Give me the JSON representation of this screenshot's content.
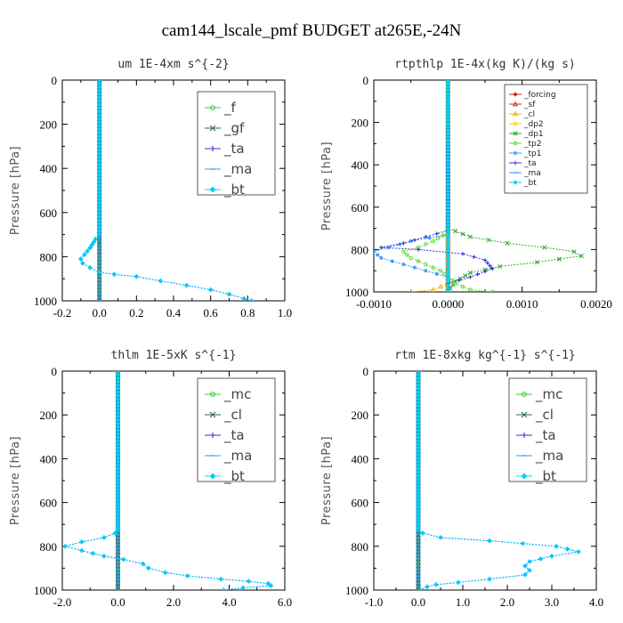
{
  "figure": {
    "title": "cam144_lscale_pmf  BUDGET at265E,-24N"
  },
  "chart_data": [
    {
      "type": "line",
      "title": "um  1E-4xm s^{-2}",
      "ylabel": "Pressure [hPa]",
      "xlim": [
        -0.2,
        1.0
      ],
      "ylim": [
        1000,
        0
      ],
      "xticks": [
        -0.2,
        0.0,
        0.2,
        0.4,
        0.6,
        0.8,
        1.0
      ],
      "xtick_labels": [
        "-0.2",
        "0.0",
        "0.2",
        "0.4",
        "0.6",
        "0.8",
        "1.0"
      ],
      "yticks": [
        0,
        200,
        400,
        600,
        800,
        1000
      ],
      "ytick_labels": [
        "0",
        "200",
        "400",
        "600",
        "800",
        "1000"
      ],
      "legend": {
        "position": "top-right",
        "style": "large"
      },
      "series": [
        {
          "name": "_f",
          "color": "#33cc33",
          "marker": "circle",
          "points": [
            [
              0.0,
              0
            ],
            [
              0.0,
              1000
            ]
          ]
        },
        {
          "name": "_gf",
          "color": "#336666",
          "marker": "x",
          "points": [
            [
              0.0,
              0
            ],
            [
              0.0,
              1000
            ]
          ]
        },
        {
          "name": "_ta",
          "color": "#3333cc",
          "marker": "plus",
          "points": [
            [
              0.0,
              0
            ],
            [
              0.0,
              700
            ],
            [
              -0.02,
              720
            ],
            [
              -0.05,
              760
            ],
            [
              -0.08,
              790
            ],
            [
              -0.1,
              810
            ],
            [
              -0.09,
              830
            ],
            [
              -0.05,
              850
            ],
            [
              0.0,
              870
            ],
            [
              0.08,
              880
            ],
            [
              0.2,
              890
            ],
            [
              0.33,
              910
            ],
            [
              0.47,
              930
            ],
            [
              0.6,
              950
            ],
            [
              0.7,
              970
            ],
            [
              0.78,
              990
            ],
            [
              0.82,
              1000
            ]
          ]
        },
        {
          "name": "_ma",
          "color": "#3399ff",
          "marker": "dash",
          "points": [
            [
              0.0,
              0
            ],
            [
              0.0,
              1000
            ]
          ]
        },
        {
          "name": "_bt",
          "color": "#00ccff",
          "marker": "diamond",
          "points": [
            [
              0.0,
              0
            ],
            [
              0.0,
              700
            ],
            [
              -0.02,
              720
            ],
            [
              -0.05,
              760
            ],
            [
              -0.08,
              790
            ],
            [
              -0.1,
              810
            ],
            [
              -0.09,
              830
            ],
            [
              -0.05,
              850
            ],
            [
              0.0,
              870
            ],
            [
              0.08,
              880
            ],
            [
              0.2,
              890
            ],
            [
              0.33,
              910
            ],
            [
              0.47,
              930
            ],
            [
              0.6,
              950
            ],
            [
              0.7,
              970
            ],
            [
              0.78,
              990
            ],
            [
              0.82,
              1000
            ]
          ]
        }
      ]
    },
    {
      "type": "line",
      "title": "rtpthlp  1E-4x(kg K)/(kg s)",
      "ylabel": "Pressure [hPa]",
      "xlim": [
        -0.001,
        0.002
      ],
      "ylim": [
        1000,
        0
      ],
      "xticks": [
        -0.001,
        0.0,
        0.001,
        0.002
      ],
      "xtick_labels": [
        "-0.0010",
        "0.0000",
        "0.0010",
        "0.0020"
      ],
      "yticks": [
        0,
        200,
        400,
        600,
        800,
        1000
      ],
      "ytick_labels": [
        "0",
        "200",
        "400",
        "600",
        "800",
        "1000"
      ],
      "legend": {
        "position": "top-right",
        "style": "small"
      },
      "series": [
        {
          "name": "_forcing",
          "color": "#cc2222",
          "marker": "diamond",
          "points": [
            [
              0.0,
              0
            ],
            [
              0.0,
              1000
            ]
          ]
        },
        {
          "name": "_sf",
          "color": "#cc3333",
          "marker": "tri",
          "points": [
            [
              0.0,
              0
            ],
            [
              0.0,
              1000
            ]
          ]
        },
        {
          "name": "_cl",
          "color": "#ffaa00",
          "marker": "tri",
          "points": [
            [
              0.0,
              0
            ],
            [
              0.0,
              960
            ],
            [
              -0.0002,
              990
            ],
            [
              -0.0005,
              1000
            ]
          ]
        },
        {
          "name": "_dp2",
          "color": "#ffcc00",
          "marker": "circle",
          "points": [
            [
              0.0,
              0
            ],
            [
              0.0,
              1000
            ]
          ]
        },
        {
          "name": "_dp1",
          "color": "#33aa33",
          "marker": "x",
          "points": [
            [
              0.0,
              0
            ],
            [
              0.0,
              700
            ],
            [
              0.0003,
              740
            ],
            [
              0.0008,
              770
            ],
            [
              0.0013,
              790
            ],
            [
              0.0017,
              810
            ],
            [
              0.0018,
              830
            ],
            [
              0.0012,
              860
            ],
            [
              0.0007,
              880
            ],
            [
              0.0003,
              910
            ],
            [
              0.0001,
              950
            ],
            [
              0.0,
              1000
            ]
          ]
        },
        {
          "name": "_tp2",
          "color": "#55dd33",
          "marker": "circle",
          "points": [
            [
              0.0,
              0
            ],
            [
              0.0,
              720
            ],
            [
              -0.0002,
              760
            ],
            [
              -0.0004,
              790
            ],
            [
              -0.0006,
              810
            ],
            [
              -0.0005,
              840
            ],
            [
              -0.0003,
              870
            ],
            [
              -0.0001,
              900
            ],
            [
              0.0,
              930
            ],
            [
              0.0001,
              960
            ],
            [
              0.0003,
              990
            ],
            [
              0.0006,
              1000
            ]
          ]
        },
        {
          "name": "_tp1",
          "color": "#3399ff",
          "marker": "star",
          "points": [
            [
              0.0,
              0
            ],
            [
              0.0,
              730
            ],
            [
              -0.0005,
              760
            ],
            [
              -0.0008,
              790
            ],
            [
              -0.001,
              810
            ],
            [
              -0.0009,
              840
            ],
            [
              -0.0006,
              870
            ],
            [
              -0.0003,
              900
            ],
            [
              0.0,
              930
            ]
          ]
        },
        {
          "name": "_ta",
          "color": "#3333cc",
          "marker": "plus",
          "points": [
            [
              0.0,
              0
            ],
            [
              0.0,
              710
            ],
            [
              -0.0003,
              740
            ],
            [
              -0.0006,
              770
            ],
            [
              -0.0009,
              790
            ],
            [
              -0.0004,
              800
            ],
            [
              0.0002,
              820
            ],
            [
              0.0005,
              850
            ],
            [
              0.0006,
              890
            ],
            [
              0.0003,
              930
            ],
            [
              0.0,
              960
            ]
          ]
        },
        {
          "name": "_ma",
          "color": "#3399ff",
          "marker": "dash",
          "points": [
            [
              0.0,
              0
            ],
            [
              0.0,
              1000
            ]
          ]
        },
        {
          "name": "_bt",
          "color": "#00ccff",
          "marker": "diamond",
          "points": [
            [
              0.0,
              0
            ],
            [
              0.0,
              1000
            ]
          ]
        }
      ]
    },
    {
      "type": "line",
      "title": "thlm  1E-5xK s^{-1}",
      "ylabel": "Pressure [hPa]",
      "xlim": [
        -2.0,
        6.0
      ],
      "ylim": [
        1000,
        0
      ],
      "xticks": [
        -2.0,
        0.0,
        2.0,
        4.0,
        6.0
      ],
      "xtick_labels": [
        "-2.0",
        "0.0",
        "2.0",
        "4.0",
        "6.0"
      ],
      "yticks": [
        0,
        200,
        400,
        600,
        800,
        1000
      ],
      "ytick_labels": [
        "0",
        "200",
        "400",
        "600",
        "800",
        "1000"
      ],
      "legend": {
        "position": "top-right",
        "style": "large"
      },
      "series": [
        {
          "name": "_mc",
          "color": "#33cc33",
          "marker": "circle",
          "points": [
            [
              0.0,
              0
            ],
            [
              0.0,
              1000
            ]
          ]
        },
        {
          "name": "_cl",
          "color": "#336666",
          "marker": "x",
          "points": [
            [
              0.0,
              0
            ],
            [
              0.0,
              1000
            ]
          ]
        },
        {
          "name": "_ta",
          "color": "#3333cc",
          "marker": "plus",
          "points": [
            [
              0.0,
              0
            ],
            [
              0.0,
              720
            ],
            [
              -0.1,
              740
            ],
            [
              -0.5,
              760
            ],
            [
              -1.3,
              780
            ],
            [
              -1.9,
              800
            ],
            [
              -1.3,
              820
            ],
            [
              -0.5,
              845
            ],
            [
              0.2,
              860
            ],
            [
              0.9,
              880
            ],
            [
              1.1,
              900
            ],
            [
              1.7,
              920
            ],
            [
              2.5,
              935
            ],
            [
              3.7,
              950
            ],
            [
              4.7,
              960
            ],
            [
              5.4,
              970
            ],
            [
              5.5,
              980
            ],
            [
              4.5,
              990
            ],
            [
              3.8,
              1000
            ]
          ]
        },
        {
          "name": "_ma",
          "color": "#3399ff",
          "marker": "dash",
          "points": [
            [
              0.0,
              0
            ],
            [
              0.0,
              1000
            ]
          ]
        },
        {
          "name": "_bt",
          "color": "#00ccff",
          "marker": "diamond",
          "points": [
            [
              0.0,
              0
            ],
            [
              0.0,
              720
            ],
            [
              -0.1,
              740
            ],
            [
              -0.5,
              760
            ],
            [
              -1.3,
              780
            ],
            [
              -1.9,
              800
            ],
            [
              -1.3,
              820
            ],
            [
              -0.5,
              845
            ],
            [
              0.2,
              860
            ],
            [
              0.9,
              880
            ],
            [
              1.1,
              900
            ],
            [
              1.7,
              920
            ],
            [
              2.5,
              935
            ],
            [
              3.7,
              950
            ],
            [
              4.7,
              960
            ],
            [
              5.4,
              970
            ],
            [
              5.5,
              980
            ],
            [
              4.5,
              990
            ],
            [
              3.8,
              1000
            ]
          ]
        }
      ]
    },
    {
      "type": "line",
      "title": "rtm  1E-8xkg kg^{-1} s^{-1}",
      "ylabel": "Pressure [hPa]",
      "xlim": [
        -1.0,
        4.0
      ],
      "ylim": [
        1000,
        0
      ],
      "xticks": [
        -1.0,
        0.0,
        1.0,
        2.0,
        3.0,
        4.0
      ],
      "xtick_labels": [
        "-1.0",
        "0.0",
        "1.0",
        "2.0",
        "3.0",
        "4.0"
      ],
      "yticks": [
        0,
        200,
        400,
        600,
        800,
        1000
      ],
      "ytick_labels": [
        "0",
        "200",
        "400",
        "600",
        "800",
        "1000"
      ],
      "legend": {
        "position": "top-right",
        "style": "large"
      },
      "series": [
        {
          "name": "_mc",
          "color": "#33cc33",
          "marker": "circle",
          "points": [
            [
              0.0,
              0
            ],
            [
              0.0,
              1000
            ]
          ]
        },
        {
          "name": "_cl",
          "color": "#336666",
          "marker": "x",
          "points": [
            [
              0.0,
              0
            ],
            [
              0.0,
              1000
            ]
          ]
        },
        {
          "name": "_ta",
          "color": "#3333cc",
          "marker": "plus",
          "points": [
            [
              0.0,
              0
            ],
            [
              0.0,
              720
            ],
            [
              0.1,
              740
            ],
            [
              0.5,
              760
            ],
            [
              1.6,
              775
            ],
            [
              3.1,
              800
            ],
            [
              3.6,
              825
            ],
            [
              3.0,
              845
            ],
            [
              2.5,
              870
            ],
            [
              2.4,
              890
            ],
            [
              2.5,
              910
            ],
            [
              2.4,
              930
            ],
            [
              1.6,
              950
            ],
            [
              0.9,
              965
            ],
            [
              0.4,
              975
            ],
            [
              0.2,
              985
            ],
            [
              0.05,
              1000
            ]
          ]
        },
        {
          "name": "_ma",
          "color": "#3399ff",
          "marker": "dash",
          "points": [
            [
              0.0,
              0
            ],
            [
              0.0,
              1000
            ]
          ]
        },
        {
          "name": "_bt",
          "color": "#00ccff",
          "marker": "diamond",
          "points": [
            [
              0.0,
              0
            ],
            [
              0.0,
              720
            ],
            [
              0.1,
              740
            ],
            [
              0.5,
              760
            ],
            [
              1.6,
              775
            ],
            [
              3.1,
              800
            ],
            [
              3.6,
              825
            ],
            [
              3.0,
              845
            ],
            [
              2.5,
              870
            ],
            [
              2.4,
              890
            ],
            [
              2.5,
              910
            ],
            [
              2.4,
              930
            ],
            [
              1.6,
              950
            ],
            [
              0.9,
              965
            ],
            [
              0.4,
              975
            ],
            [
              0.2,
              985
            ],
            [
              0.05,
              1000
            ]
          ]
        }
      ]
    }
  ]
}
